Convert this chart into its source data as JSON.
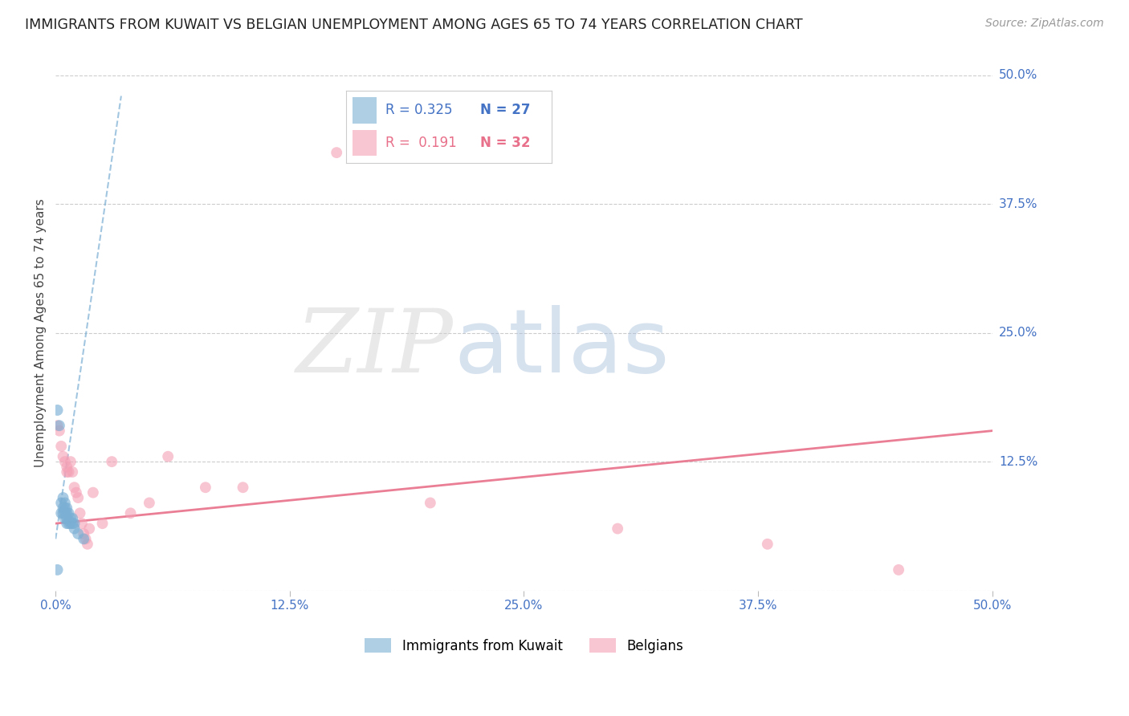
{
  "title": "IMMIGRANTS FROM KUWAIT VS BELGIAN UNEMPLOYMENT AMONG AGES 65 TO 74 YEARS CORRELATION CHART",
  "source": "Source: ZipAtlas.com",
  "ylabel": "Unemployment Among Ages 65 to 74 years",
  "xlim": [
    0.0,
    0.5
  ],
  "ylim": [
    0.0,
    0.5
  ],
  "grid_color": "#cccccc",
  "background_color": "#ffffff",
  "legend_R1": "0.325",
  "legend_N1": "27",
  "legend_R2": "0.191",
  "legend_N2": "32",
  "series1_label": "Immigrants from Kuwait",
  "series2_label": "Belgians",
  "series1_color": "#7bafd4",
  "series2_color": "#f4a0b5",
  "series1_alpha": 0.65,
  "series2_alpha": 0.6,
  "series1_marker_size": 100,
  "series2_marker_size": 100,
  "kuwait_x": [
    0.001,
    0.002,
    0.003,
    0.003,
    0.004,
    0.004,
    0.004,
    0.005,
    0.005,
    0.005,
    0.005,
    0.006,
    0.006,
    0.006,
    0.006,
    0.007,
    0.007,
    0.007,
    0.008,
    0.008,
    0.009,
    0.009,
    0.01,
    0.01,
    0.012,
    0.015,
    0.001
  ],
  "kuwait_y": [
    0.175,
    0.16,
    0.085,
    0.075,
    0.09,
    0.08,
    0.075,
    0.085,
    0.08,
    0.075,
    0.07,
    0.08,
    0.075,
    0.07,
    0.065,
    0.075,
    0.068,
    0.065,
    0.07,
    0.065,
    0.07,
    0.065,
    0.065,
    0.06,
    0.055,
    0.05,
    0.02
  ],
  "belgian_x": [
    0.001,
    0.002,
    0.003,
    0.004,
    0.005,
    0.006,
    0.006,
    0.007,
    0.008,
    0.009,
    0.01,
    0.011,
    0.012,
    0.013,
    0.014,
    0.015,
    0.016,
    0.017,
    0.018,
    0.02,
    0.025,
    0.03,
    0.04,
    0.05,
    0.06,
    0.08,
    0.1,
    0.15,
    0.2,
    0.3,
    0.38,
    0.45
  ],
  "belgian_y": [
    0.16,
    0.155,
    0.14,
    0.13,
    0.125,
    0.12,
    0.115,
    0.115,
    0.125,
    0.115,
    0.1,
    0.095,
    0.09,
    0.075,
    0.065,
    0.055,
    0.05,
    0.045,
    0.06,
    0.095,
    0.065,
    0.125,
    0.075,
    0.085,
    0.13,
    0.1,
    0.1,
    0.425,
    0.085,
    0.06,
    0.045,
    0.02
  ],
  "trend1_x0": 0.0,
  "trend1_x1": 0.035,
  "trend1_y0": 0.05,
  "trend1_y1": 0.48,
  "trend2_x0": 0.0,
  "trend2_x1": 0.5,
  "trend2_y0": 0.065,
  "trend2_y1": 0.155
}
